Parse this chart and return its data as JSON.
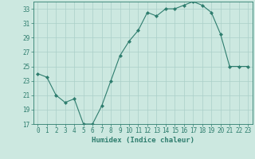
{
  "x": [
    0,
    1,
    2,
    3,
    4,
    5,
    6,
    7,
    8,
    9,
    10,
    11,
    12,
    13,
    14,
    15,
    16,
    17,
    18,
    19,
    20,
    21,
    22,
    23
  ],
  "y": [
    24,
    23.5,
    21,
    20,
    20.5,
    17,
    17,
    19.5,
    23,
    26.5,
    28.5,
    30,
    32.5,
    32,
    33,
    33,
    33.5,
    34,
    33.5,
    32.5,
    29.5,
    25,
    25,
    25
  ],
  "line_color": "#2e7d6e",
  "marker": "D",
  "marker_size": 2,
  "bg_color": "#cce8e0",
  "grid_color": "#aacfc8",
  "xlabel": "Humidex (Indice chaleur)",
  "ylim": [
    17,
    34
  ],
  "xlim": [
    -0.5,
    23.5
  ],
  "yticks": [
    17,
    19,
    21,
    23,
    25,
    27,
    29,
    31,
    33
  ],
  "xticks": [
    0,
    1,
    2,
    3,
    4,
    5,
    6,
    7,
    8,
    9,
    10,
    11,
    12,
    13,
    14,
    15,
    16,
    17,
    18,
    19,
    20,
    21,
    22,
    23
  ],
  "tick_color": "#2e7d6e",
  "tick_fontsize": 5.5,
  "xlabel_fontsize": 6.5,
  "axis_color": "#2e7d6e"
}
